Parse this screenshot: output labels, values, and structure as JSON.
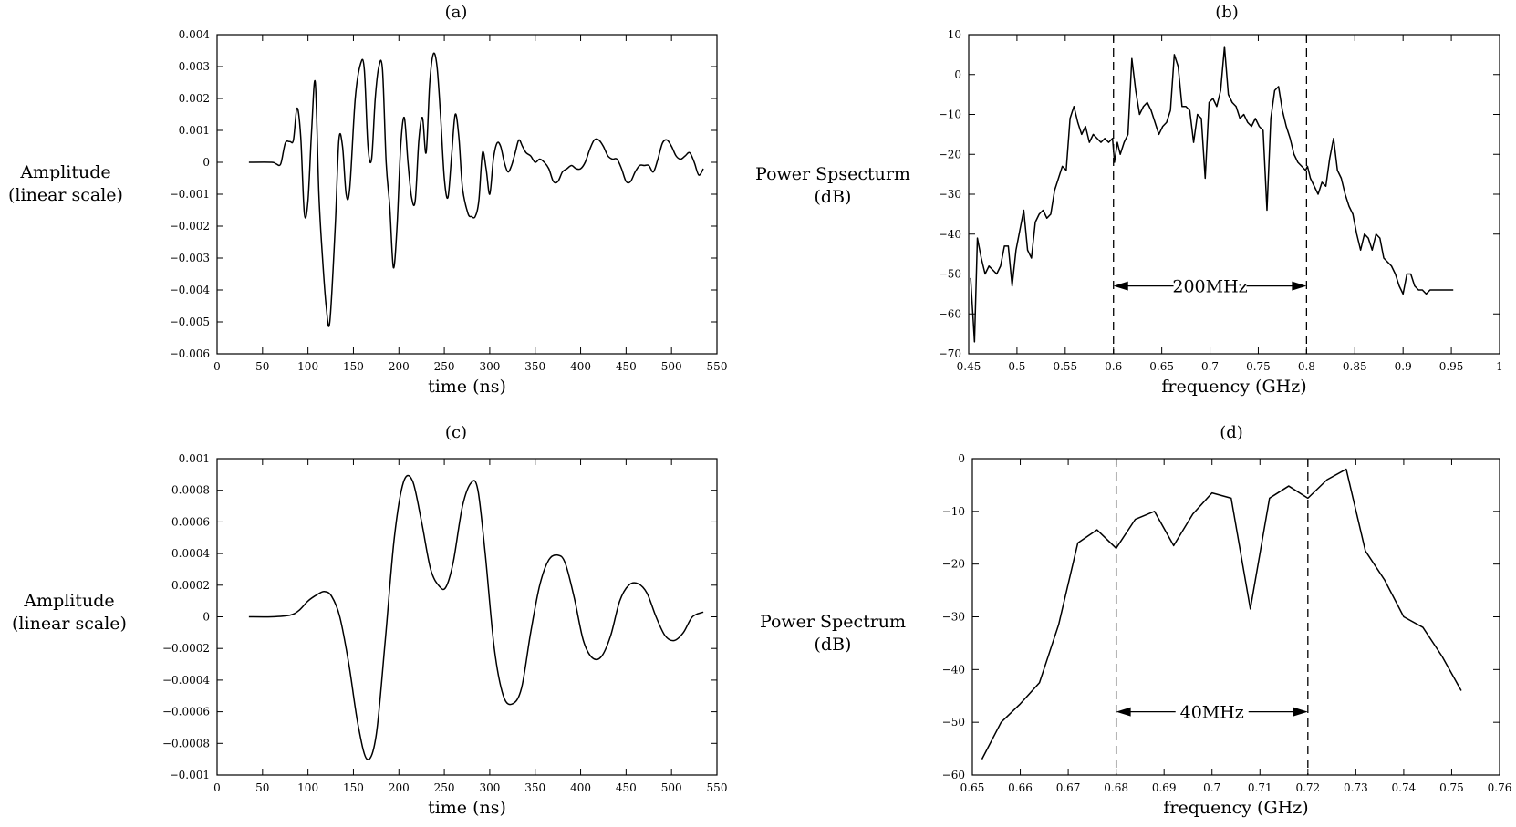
{
  "chart_data": [
    {
      "type": "line",
      "panel_label": "(a)",
      "title": "",
      "xlabel": "time (ns)",
      "ylabel": [
        "Amplitude",
        "(linear scale)"
      ],
      "xlim": [
        0,
        550
      ],
      "ylim": [
        -0.006,
        0.004
      ],
      "xticks": [
        0,
        50,
        100,
        150,
        200,
        250,
        300,
        350,
        400,
        450,
        500,
        550
      ],
      "yticks": [
        0.004,
        0.003,
        0.002,
        0.001,
        0,
        -0.001,
        -0.002,
        -0.003,
        -0.004,
        -0.005,
        -0.006
      ],
      "ytick_labels": [
        "0.004",
        "0.003",
        "0.002",
        "0.001",
        "0",
        "−0.001",
        "−0.002",
        "−0.003",
        "−0.004",
        "−0.005",
        "−0.006"
      ],
      "grid": false,
      "smooth": true,
      "series": [
        {
          "x": [
            35,
            60,
            65,
            70,
            75,
            80,
            84,
            88,
            92,
            96,
            100,
            104,
            108,
            112,
            116,
            120,
            124,
            130,
            134,
            138,
            142,
            146,
            152,
            158,
            162,
            166,
            170,
            174,
            178,
            182,
            186,
            190,
            194,
            198,
            202,
            206,
            210,
            214,
            218,
            222,
            226,
            230,
            234,
            238,
            242,
            246,
            250,
            254,
            258,
            262,
            266,
            270,
            276,
            280,
            284,
            288,
            292,
            296,
            300,
            304,
            308,
            312,
            316,
            320,
            324,
            328,
            332,
            336,
            340,
            345,
            350,
            355,
            360,
            365,
            370,
            375,
            380,
            385,
            390,
            395,
            400,
            405,
            410,
            415,
            420,
            425,
            430,
            435,
            440,
            445,
            450,
            455,
            460,
            465,
            470,
            475,
            480,
            485,
            490,
            495,
            500,
            505,
            510,
            515,
            520,
            525,
            530,
            535
          ],
          "y": [
            0,
            0,
            -5e-05,
            -5e-05,
            0.0006,
            0.00065,
            0.0007,
            0.0017,
            0.0008,
            -0.0016,
            -0.0012,
            0.001,
            0.0025,
            -0.001,
            -0.003,
            -0.0045,
            -0.005,
            -0.002,
            0.0007,
            0.0005,
            -0.001,
            -0.0008,
            0.002,
            0.0031,
            0.0029,
            0.0005,
            0.0001,
            0.002,
            0.003,
            0.0029,
            0.0,
            -0.0014,
            -0.0033,
            -0.002,
            0.0005,
            0.0014,
            0.0,
            -0.0011,
            -0.0012,
            0.0007,
            0.0014,
            0.0003,
            0.0025,
            0.0034,
            0.003,
            0.0014,
            -0.0005,
            -0.0011,
            0.0002,
            0.0015,
            0.0008,
            -0.0008,
            -0.0016,
            -0.0017,
            -0.0017,
            -0.0012,
            0.0003,
            -0.0002,
            -0.001,
            0.0001,
            0.0006,
            0.0005,
            0.0,
            -0.0003,
            -0.0001,
            0.0003,
            0.0007,
            0.0005,
            0.0003,
            0.0002,
            0.0,
            0.0001,
            0.0,
            -0.0002,
            -0.0006,
            -0.0006,
            -0.0003,
            -0.0002,
            -0.0001,
            -0.0002,
            -0.0002,
            0.0,
            0.0004,
            0.0007,
            0.0007,
            0.0005,
            0.0002,
            0.0001,
            0.0001,
            -0.0002,
            -0.0006,
            -0.0006,
            -0.0003,
            -0.0001,
            -0.0001,
            -0.0001,
            -0.0003,
            0.0001,
            0.0006,
            0.0007,
            0.0005,
            0.0002,
            0.0001,
            0.0002,
            0.0003,
            0.0,
            -0.0004,
            -0.0002
          ]
        }
      ]
    },
    {
      "type": "line",
      "panel_label": "(b)",
      "title": "",
      "xlabel": "frequency (GHz)",
      "ylabel": [
        "Power Spsecturm",
        "(dB)"
      ],
      "xlim": [
        0.45,
        1
      ],
      "ylim": [
        -70,
        10
      ],
      "xticks": [
        0.45,
        0.5,
        0.55,
        0.6,
        0.65,
        0.7,
        0.75,
        0.8,
        0.85,
        0.9,
        0.95,
        1
      ],
      "xtick_labels": [
        "0.45",
        "0.5",
        "0.55",
        "0.6",
        "0.65",
        "0.7",
        "0.75",
        "0.8",
        "0.85",
        "0.9",
        "0.95",
        "1"
      ],
      "yticks": [
        10,
        0,
        -10,
        -20,
        -30,
        -40,
        -50,
        -60,
        -70
      ],
      "ytick_labels": [
        "10",
        "0",
        "−10",
        "−20",
        "−30",
        "−40",
        "−50",
        "−60",
        "−70"
      ],
      "grid": false,
      "smooth": false,
      "dashed_vlines": [
        0.6,
        0.8
      ],
      "annotation": {
        "text": "200MHz",
        "x_from": 0.6,
        "x_to": 0.8,
        "y": -53
      },
      "series": [
        {
          "x": [
            0.452,
            0.456,
            0.459,
            0.463,
            0.467,
            0.471,
            0.475,
            0.479,
            0.483,
            0.487,
            0.491,
            0.495,
            0.499,
            0.503,
            0.507,
            0.511,
            0.515,
            0.519,
            0.523,
            0.527,
            0.531,
            0.535,
            0.539,
            0.543,
            0.547,
            0.551,
            0.555,
            0.559,
            0.563,
            0.567,
            0.571,
            0.575,
            0.579,
            0.583,
            0.587,
            0.591,
            0.595,
            0.599,
            0.601,
            0.604,
            0.607,
            0.611,
            0.615,
            0.619,
            0.623,
            0.627,
            0.631,
            0.635,
            0.639,
            0.643,
            0.647,
            0.651,
            0.655,
            0.659,
            0.663,
            0.667,
            0.671,
            0.675,
            0.679,
            0.683,
            0.687,
            0.691,
            0.695,
            0.699,
            0.703,
            0.707,
            0.711,
            0.715,
            0.719,
            0.723,
            0.727,
            0.731,
            0.735,
            0.739,
            0.743,
            0.747,
            0.751,
            0.755,
            0.759,
            0.763,
            0.767,
            0.771,
            0.775,
            0.779,
            0.783,
            0.787,
            0.791,
            0.795,
            0.799,
            0.801,
            0.804,
            0.808,
            0.812,
            0.816,
            0.82,
            0.824,
            0.828,
            0.832,
            0.836,
            0.84,
            0.844,
            0.848,
            0.852,
            0.856,
            0.86,
            0.864,
            0.868,
            0.872,
            0.876,
            0.88,
            0.884,
            0.888,
            0.892,
            0.896,
            0.9,
            0.904,
            0.908,
            0.912,
            0.916,
            0.92,
            0.924,
            0.928,
            0.932,
            0.936,
            0.94,
            0.944,
            0.948,
            0.952
          ],
          "y": [
            -51,
            -67,
            -41,
            -46,
            -50,
            -48,
            -49,
            -50,
            -48,
            -43,
            -43,
            -53,
            -44,
            -39,
            -34,
            -44,
            -46,
            -37,
            -35,
            -34,
            -36,
            -35,
            -29,
            -26,
            -23,
            -24,
            -11,
            -8,
            -12,
            -15,
            -13,
            -17,
            -15,
            -16,
            -17,
            -16,
            -17,
            -16,
            -22,
            -17,
            -20,
            -17,
            -15,
            4,
            -4,
            -10,
            -8,
            -7,
            -9,
            -12,
            -15,
            -13,
            -12,
            -9,
            5,
            2,
            -8,
            -8,
            -9,
            -17,
            -10,
            -11,
            -26,
            -7,
            -6,
            -8,
            -4,
            7,
            -5,
            -7,
            -8,
            -11,
            -10,
            -12,
            -13,
            -11,
            -13,
            -14,
            -34,
            -11,
            -4,
            -3,
            -9,
            -13,
            -16,
            -20,
            -22,
            -23,
            -24,
            -23,
            -26,
            -28,
            -30,
            -27,
            -28,
            -21,
            -16,
            -24,
            -26,
            -30,
            -33,
            -35,
            -40,
            -44,
            -40,
            -41,
            -44,
            -40,
            -41,
            -46,
            -47,
            -48,
            -50,
            -53,
            -55,
            -50,
            -50,
            -53,
            -54,
            -54,
            -55,
            -54,
            -54,
            -54,
            -54,
            -54,
            -54,
            -54
          ]
        }
      ]
    },
    {
      "type": "line",
      "panel_label": "(c)",
      "title": "",
      "xlabel": "time (ns)",
      "ylabel": [
        "Amplitude",
        "(linear scale)"
      ],
      "xlim": [
        0,
        550
      ],
      "ylim": [
        -0.001,
        0.001
      ],
      "xticks": [
        0,
        50,
        100,
        150,
        200,
        250,
        300,
        350,
        400,
        450,
        500,
        550
      ],
      "yticks": [
        0.001,
        0.0008,
        0.0006,
        0.0004,
        0.0002,
        0,
        -0.0002,
        -0.0004,
        -0.0006,
        -0.0008,
        -0.001
      ],
      "ytick_labels": [
        "0.001",
        "0.0008",
        "0.0006",
        "0.0004",
        "0.0002",
        "0",
        "−0.0002",
        "−0.0004",
        "−0.0006",
        "−0.0008",
        "−0.001"
      ],
      "grid": false,
      "smooth": true,
      "series": [
        {
          "x": [
            35,
            60,
            80,
            90,
            100,
            110,
            118,
            126,
            135,
            145,
            155,
            165,
            175,
            185,
            195,
            205,
            215,
            225,
            235,
            245,
            252,
            260,
            270,
            280,
            287,
            295,
            305,
            315,
            325,
            335,
            345,
            355,
            365,
            375,
            383,
            393,
            403,
            413,
            423,
            433,
            443,
            453,
            463,
            473,
            483,
            493,
            503,
            513,
            523,
            535
          ],
          "y": [
            0,
            0,
            1e-05,
            4e-05,
            0.0001,
            0.00014,
            0.00016,
            0.00013,
            0.0,
            -0.0003,
            -0.00068,
            -0.0009,
            -0.00075,
            -0.00015,
            0.0005,
            0.00085,
            0.00086,
            0.0006,
            0.0003,
            0.00019,
            0.00019,
            0.00035,
            0.0007,
            0.00085,
            0.0008,
            0.0004,
            -0.0002,
            -0.0005,
            -0.00055,
            -0.00045,
            -0.0001,
            0.0002,
            0.00036,
            0.00039,
            0.00034,
            0.00012,
            -0.00015,
            -0.00026,
            -0.00025,
            -0.00012,
            0.0001,
            0.0002,
            0.00021,
            0.00015,
            0.0,
            -0.00012,
            -0.00015,
            -0.0001,
            0.0,
            3e-05
          ]
        }
      ]
    },
    {
      "type": "line",
      "panel_label": "(d)",
      "title": "",
      "xlabel": "frequency (GHz)",
      "ylabel": [
        "Power Spectrum",
        "(dB)"
      ],
      "xlim": [
        0.65,
        0.76
      ],
      "ylim": [
        -60,
        0
      ],
      "xticks": [
        0.65,
        0.66,
        0.67,
        0.68,
        0.69,
        0.7,
        0.71,
        0.72,
        0.73,
        0.74,
        0.75,
        0.76
      ],
      "xtick_labels": [
        "0.65",
        "0.66",
        "0.67",
        "0.68",
        "0.69",
        "0.7",
        "0.71",
        "0.72",
        "0.73",
        "0.74",
        "0.75",
        "0.76"
      ],
      "yticks": [
        0,
        -10,
        -20,
        -30,
        -40,
        -50,
        -60
      ],
      "ytick_labels": [
        "0",
        "−10",
        "−20",
        "−30",
        "−40",
        "−50",
        "−60"
      ],
      "grid": false,
      "smooth": false,
      "dashed_vlines": [
        0.68,
        0.72
      ],
      "annotation": {
        "text": "40MHz",
        "x_from": 0.68,
        "x_to": 0.72,
        "y": -48
      },
      "series": [
        {
          "x": [
            0.652,
            0.656,
            0.66,
            0.664,
            0.668,
            0.672,
            0.676,
            0.68,
            0.684,
            0.688,
            0.692,
            0.696,
            0.7,
            0.704,
            0.708,
            0.712,
            0.716,
            0.72,
            0.724,
            0.728,
            0.732,
            0.736,
            0.74,
            0.744,
            0.748,
            0.752
          ],
          "y": [
            -57,
            -50,
            -46.5,
            -42.5,
            -31.5,
            -16,
            -13.5,
            -17,
            -11.5,
            -10,
            -16.5,
            -10.5,
            -6.5,
            -7.5,
            -28.5,
            -7.5,
            -5.2,
            -7.5,
            -4,
            -2,
            -17.5,
            -23,
            -30,
            -32,
            -37.5,
            -44
          ]
        }
      ]
    }
  ]
}
